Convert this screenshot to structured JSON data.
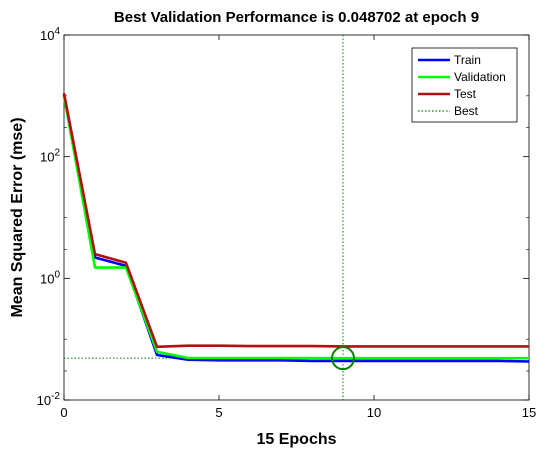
{
  "chart_data": {
    "type": "line",
    "title": "Best Validation Performance is 0.048702 at epoch 9",
    "xlabel": "15 Epochs",
    "ylabel": "Mean Squared Error  (mse)",
    "xlim": [
      0,
      15
    ],
    "ylim": [
      0.01,
      10000
    ],
    "yscale": "log",
    "x_ticks": [
      0,
      5,
      10,
      15
    ],
    "y_ticks": [
      {
        "value": 0.01,
        "base": "10",
        "exp": "-2"
      },
      {
        "value": 1,
        "base": "10",
        "exp": "0"
      },
      {
        "value": 100,
        "base": "10",
        "exp": "2"
      },
      {
        "value": 10000,
        "base": "10",
        "exp": "4"
      }
    ],
    "x": [
      0,
      1,
      2,
      3,
      4,
      5,
      6,
      7,
      8,
      9,
      10,
      11,
      12,
      13,
      14,
      15
    ],
    "series": [
      {
        "name": "Train",
        "color": "#0000ff",
        "values": [
          1050,
          2.2,
          1.6,
          0.055,
          0.046,
          0.045,
          0.045,
          0.045,
          0.044,
          0.044,
          0.044,
          0.044,
          0.044,
          0.044,
          0.044,
          0.043
        ]
      },
      {
        "name": "Validation",
        "color": "#00ff00",
        "values": [
          1000,
          1.5,
          1.5,
          0.062,
          0.049,
          0.049,
          0.049,
          0.049,
          0.049,
          0.0487,
          0.0487,
          0.0487,
          0.0487,
          0.0487,
          0.0487,
          0.0487
        ]
      },
      {
        "name": "Test",
        "color": "#b01010",
        "values": [
          1100,
          2.5,
          1.8,
          0.075,
          0.078,
          0.078,
          0.077,
          0.077,
          0.077,
          0.076,
          0.076,
          0.076,
          0.076,
          0.076,
          0.076,
          0.076
        ]
      }
    ],
    "best": {
      "name": "Best",
      "epoch": 9,
      "value": 0.048702,
      "color": "#008000"
    },
    "legend": {
      "position": "top-right",
      "entries": [
        "Train",
        "Validation",
        "Test",
        "Best"
      ]
    },
    "grid": false
  }
}
